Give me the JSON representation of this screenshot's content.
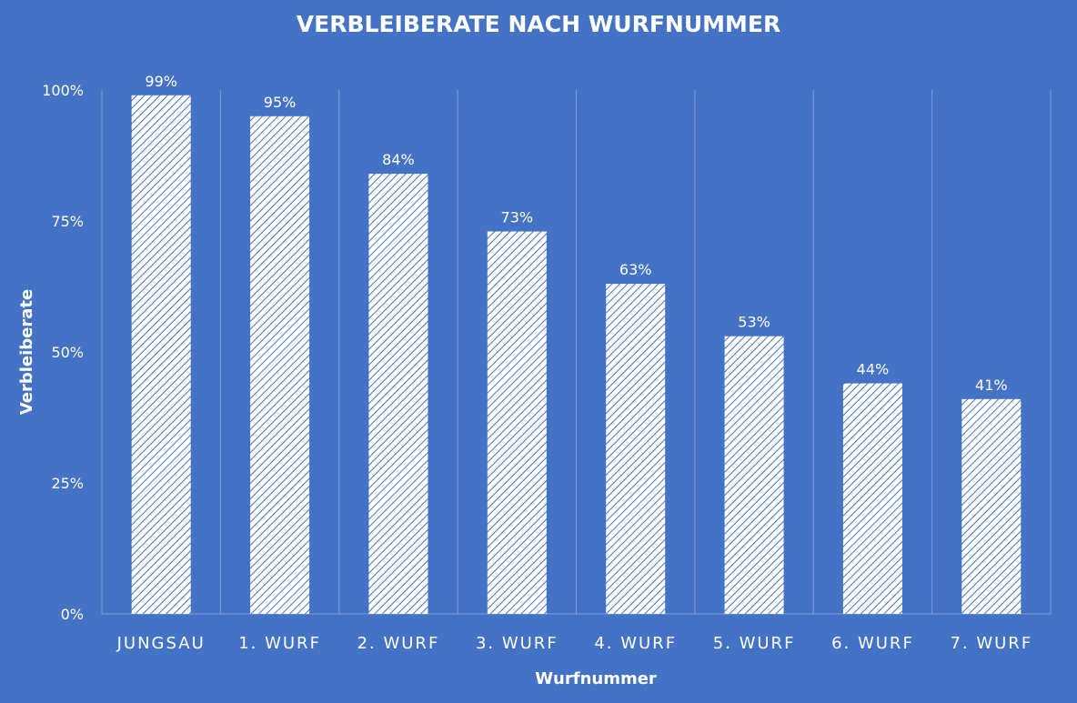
{
  "chart_data": {
    "type": "bar",
    "title": "VERBLEIBERATE NACH WURFNUMMER",
    "xlabel": "Wurfnummer",
    "ylabel": "Verbleiberate",
    "categories": [
      "JUNGSAU",
      "1. WURF",
      "2. WURF",
      "3. WURF",
      "4. WURF",
      "5. WURF",
      "6. WURF",
      "7. WURF"
    ],
    "values": [
      99,
      95,
      84,
      73,
      63,
      53,
      44,
      41
    ],
    "data_labels": [
      "99%",
      "95%",
      "84%",
      "73%",
      "63%",
      "53%",
      "44%",
      "41%"
    ],
    "ylim": [
      0,
      100
    ],
    "yticks": [
      0,
      25,
      50,
      75,
      100
    ],
    "ytick_labels": [
      "0%",
      "25%",
      "50%",
      "75%",
      "100%"
    ],
    "grid": "vertical-category-separators",
    "legend": "none",
    "colors": {
      "background": "#4472c4",
      "bar_fill": "#ffffff",
      "bar_hatch": "#4472c4",
      "text": "#ffffff",
      "gridline": "#7f9fd9"
    }
  }
}
